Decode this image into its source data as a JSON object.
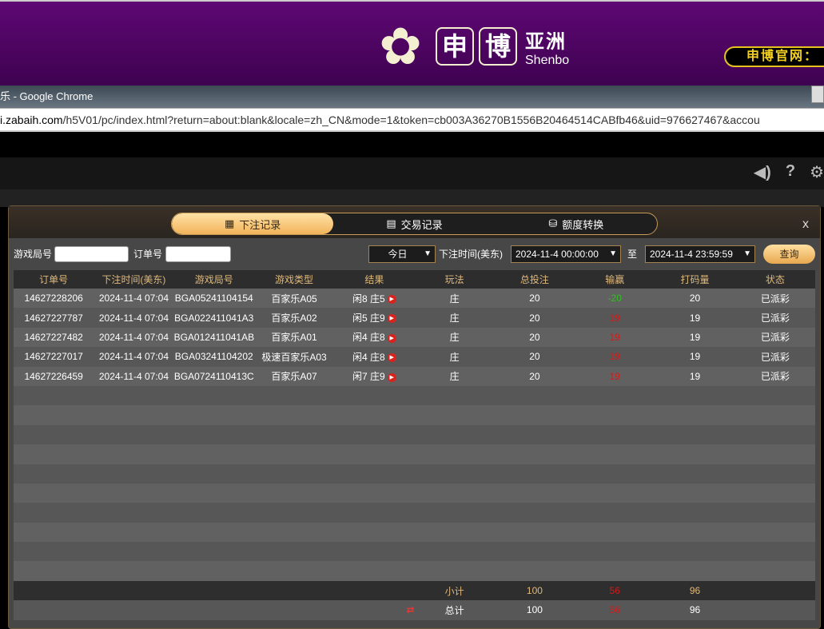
{
  "banner": {
    "brand_char1": "申",
    "brand_char2": "博",
    "brand_cn": "亚洲",
    "brand_en": "Shenbo",
    "official_site": "申博官网："
  },
  "browser": {
    "title": "乐 - Google Chrome",
    "url_host": "i.zabaih.com",
    "url_path": "/h5V01/pc/index.html?return=about:blank&locale=zh_CN&mode=1&token=cb003A36270B1556B20464514CABfb46&uid=976627467&accou"
  },
  "modal": {
    "tabs": [
      {
        "label": "下注记录",
        "icon": "calendar-icon",
        "active": true
      },
      {
        "label": "交易记录",
        "icon": "clipboard-icon",
        "active": false
      },
      {
        "label": "额度转换",
        "icon": "coins-icon",
        "active": false
      }
    ],
    "close_label": "x",
    "filters": {
      "game_round_label": "游戏局号",
      "game_round_value": "",
      "order_label": "订单号",
      "order_value": "",
      "period": "今日",
      "time_label": "下注时间(美东)",
      "start": "2024-11-4 00:00:00",
      "to_label": "至",
      "end": "2024-11-4 23:59:59",
      "query_label": "查询"
    },
    "columns": [
      "订单号",
      "下注时间(美东)",
      "游戏局号",
      "游戏类型",
      "结果",
      "玩法",
      "总投注",
      "输赢",
      "打码量",
      "状态"
    ],
    "rows": [
      {
        "order": "14627228206",
        "time": "2024-11-4 07:04",
        "round": "BGA05241104154",
        "game": "百家乐A05",
        "result": "闲8 庄5",
        "play": "庄",
        "bet": "20",
        "win": "-20",
        "turnover": "20",
        "status": "已派彩"
      },
      {
        "order": "14627227787",
        "time": "2024-11-4 07:04",
        "round": "BGA022411041A3",
        "game": "百家乐A02",
        "result": "闲5 庄9",
        "play": "庄",
        "bet": "20",
        "win": "19",
        "turnover": "19",
        "status": "已派彩"
      },
      {
        "order": "14627227482",
        "time": "2024-11-4 07:04",
        "round": "BGA012411041AB",
        "game": "百家乐A01",
        "result": "闲4 庄8",
        "play": "庄",
        "bet": "20",
        "win": "19",
        "turnover": "19",
        "status": "已派彩"
      },
      {
        "order": "14627227017",
        "time": "2024-11-4 07:04",
        "round": "BGA03241104202",
        "game": "极速百家乐A03",
        "result": "闲4 庄8",
        "play": "庄",
        "bet": "20",
        "win": "19",
        "turnover": "19",
        "status": "已派彩"
      },
      {
        "order": "14627226459",
        "time": "2024-11-4 07:04",
        "round": "BGA0724110413C",
        "game": "百家乐A07",
        "result": "闲7 庄9",
        "play": "庄",
        "bet": "20",
        "win": "19",
        "turnover": "19",
        "status": "已派彩"
      }
    ],
    "subtotal": {
      "label": "小计",
      "bet": "100",
      "win": "56",
      "turnover": "96"
    },
    "total": {
      "label": "总计",
      "bet": "100",
      "win": "56",
      "turnover": "96"
    }
  },
  "colors": {
    "win_positive": "#d11c1c",
    "win_negative": "#2ec21c",
    "accent": "#f2b35a",
    "banner": "#5e0874"
  }
}
